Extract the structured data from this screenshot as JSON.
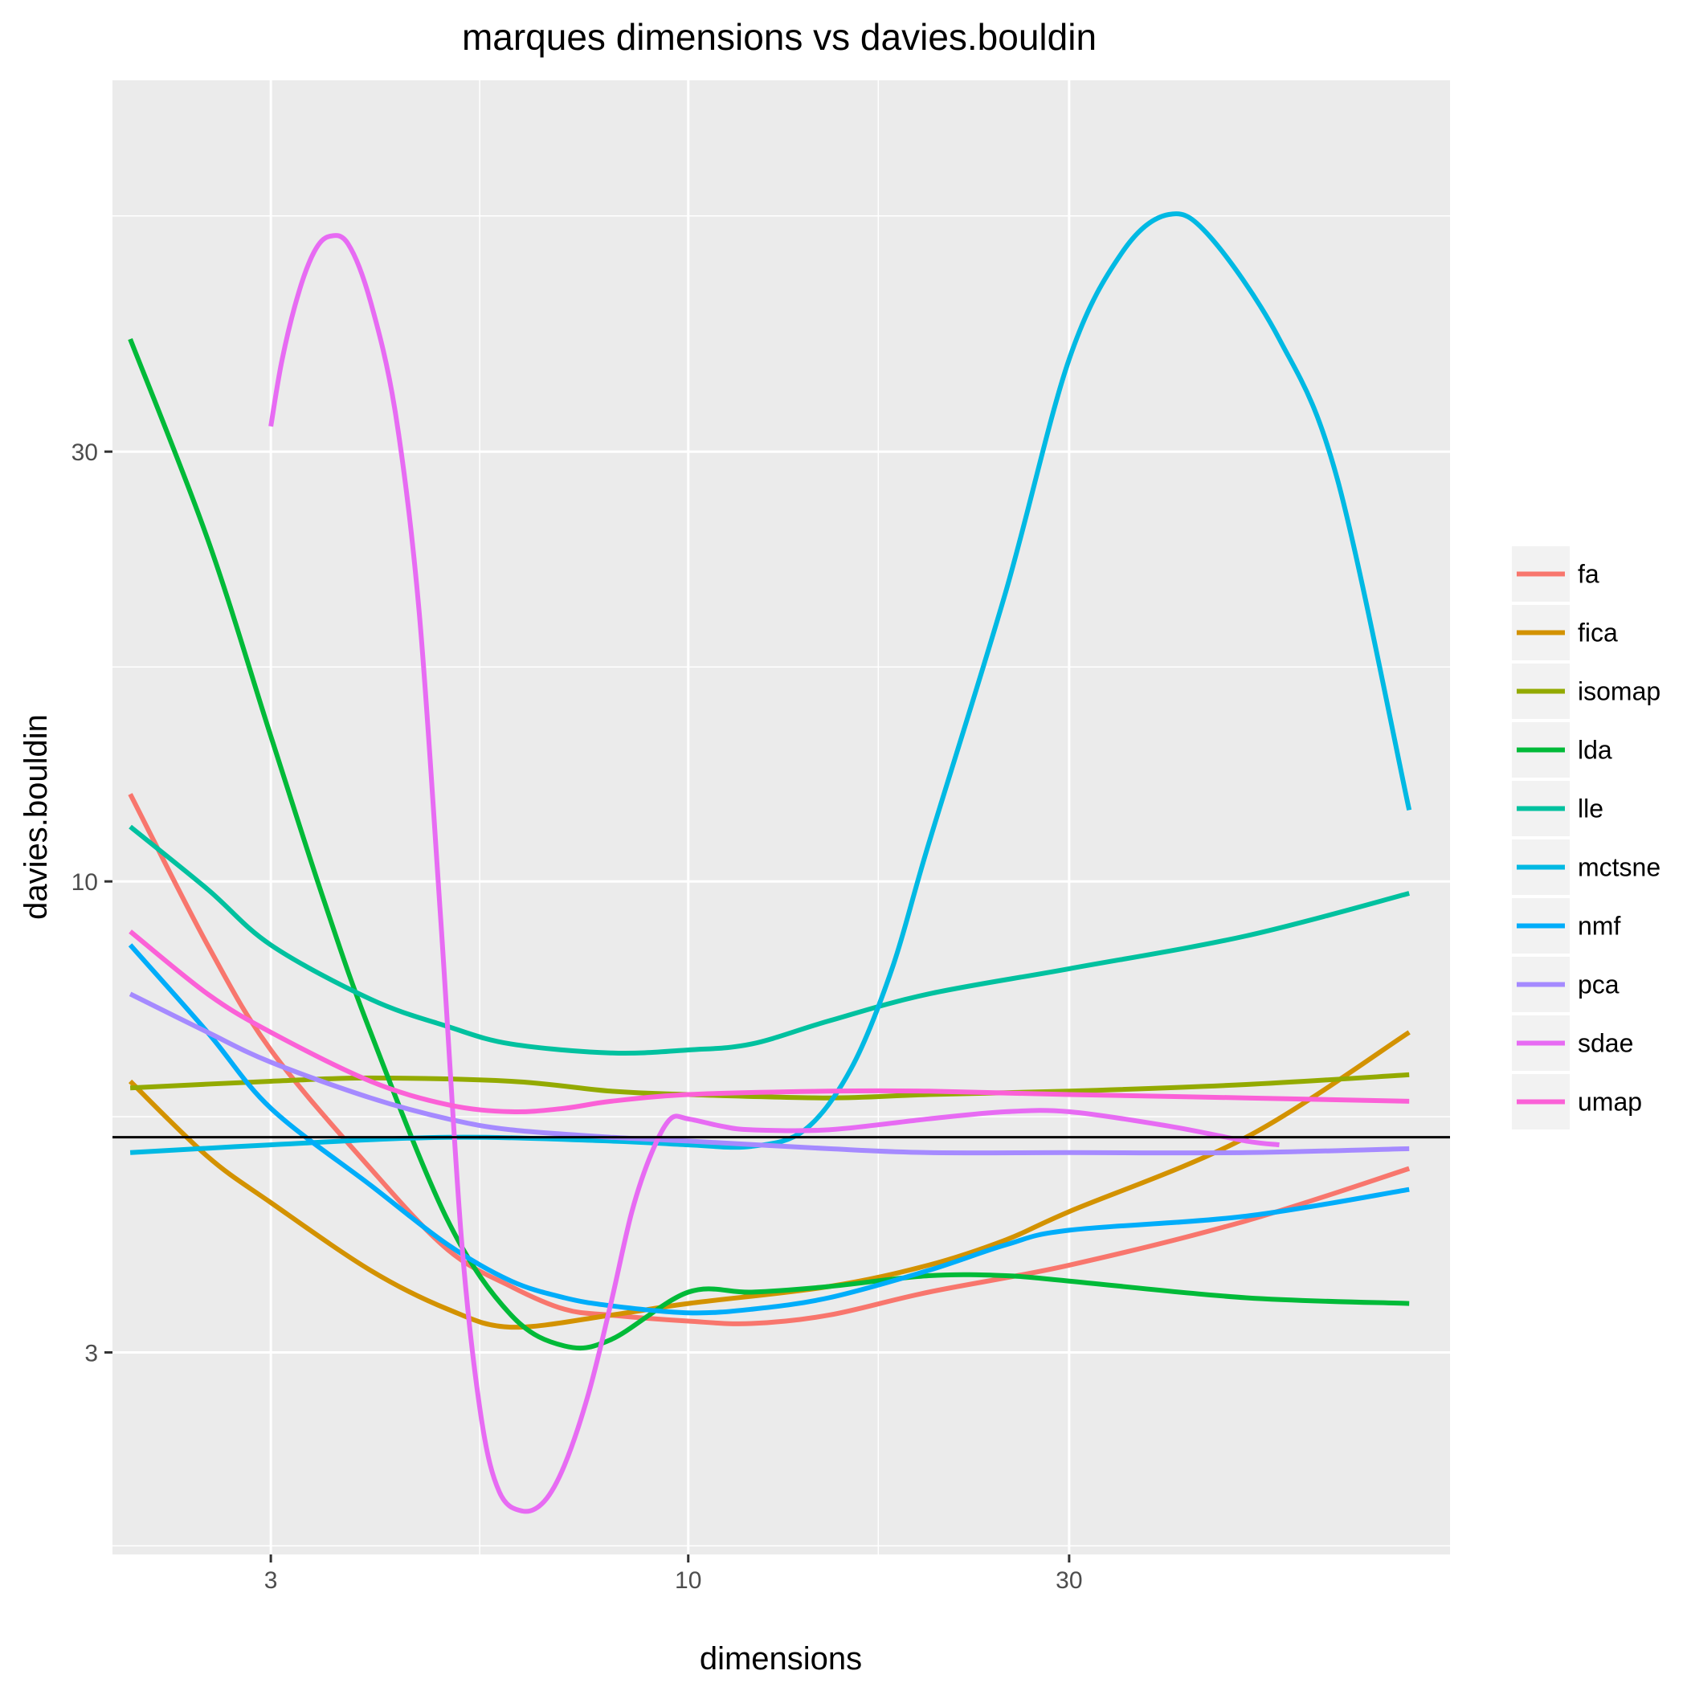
{
  "chart_data": {
    "type": "line",
    "title": "marques dimensions vs davies.bouldin",
    "xlabel": "dimensions",
    "ylabel": "davies.bouldin",
    "x_scale": "log",
    "y_scale": "log",
    "xlim": [
      1.9,
      90
    ],
    "ylim": [
      1.79,
      77.5
    ],
    "x_ticks": [
      3,
      10,
      30
    ],
    "x_tick_labels": [
      "3",
      "10",
      "30"
    ],
    "x_minor_ticks": [
      5.48,
      17.3
    ],
    "y_ticks": [
      3,
      10,
      30
    ],
    "y_tick_labels": [
      "3",
      "10",
      "30"
    ],
    "y_minor_ticks": [
      1.83,
      5.48,
      17.3,
      54.8
    ],
    "reference_line_y": 5.2,
    "grid": true,
    "legend_position": "right",
    "series": [
      {
        "name": "fa",
        "color": "#F8766D",
        "points": [
          [
            2,
            12.5
          ],
          [
            2.5,
            8.5
          ],
          [
            3,
            6.5
          ],
          [
            4,
            4.8
          ],
          [
            5,
            3.9
          ],
          [
            6,
            3.55
          ],
          [
            7,
            3.35
          ],
          [
            8,
            3.3
          ],
          [
            10,
            3.25
          ],
          [
            12,
            3.23
          ],
          [
            15,
            3.3
          ],
          [
            20,
            3.5
          ],
          [
            30,
            3.75
          ],
          [
            50,
            4.2
          ],
          [
            80,
            4.8
          ]
        ]
      },
      {
        "name": "fica",
        "color": "#D39200",
        "points": [
          [
            2,
            6.0
          ],
          [
            2.5,
            4.95
          ],
          [
            3,
            4.4
          ],
          [
            4,
            3.7
          ],
          [
            5,
            3.35
          ],
          [
            6,
            3.2
          ],
          [
            8,
            3.3
          ],
          [
            10,
            3.4
          ],
          [
            15,
            3.55
          ],
          [
            20,
            3.75
          ],
          [
            25,
            4.0
          ],
          [
            30,
            4.3
          ],
          [
            50,
            5.2
          ],
          [
            80,
            6.8
          ]
        ]
      },
      {
        "name": "isomap",
        "color": "#93AA00",
        "points": [
          [
            2,
            5.9
          ],
          [
            3,
            6.0
          ],
          [
            4,
            6.05
          ],
          [
            6,
            6.0
          ],
          [
            8,
            5.85
          ],
          [
            10,
            5.8
          ],
          [
            15,
            5.75
          ],
          [
            20,
            5.8
          ],
          [
            30,
            5.85
          ],
          [
            50,
            5.95
          ],
          [
            80,
            6.1
          ]
        ]
      },
      {
        "name": "lda",
        "color": "#00BA38",
        "points": [
          [
            2,
            40
          ],
          [
            2.5,
            24
          ],
          [
            3,
            14.5
          ],
          [
            3.5,
            9.5
          ],
          [
            4,
            6.8
          ],
          [
            5,
            4.2
          ],
          [
            6,
            3.3
          ],
          [
            7,
            3.05
          ],
          [
            8,
            3.1
          ],
          [
            10,
            3.5
          ],
          [
            12,
            3.5
          ],
          [
            15,
            3.55
          ],
          [
            20,
            3.65
          ],
          [
            25,
            3.65
          ],
          [
            30,
            3.6
          ],
          [
            50,
            3.45
          ],
          [
            80,
            3.4
          ]
        ]
      },
      {
        "name": "lle",
        "color": "#00C19F",
        "points": [
          [
            2,
            11.5
          ],
          [
            2.5,
            9.8
          ],
          [
            3,
            8.5
          ],
          [
            4,
            7.4
          ],
          [
            5,
            6.9
          ],
          [
            6,
            6.6
          ],
          [
            8,
            6.45
          ],
          [
            10,
            6.5
          ],
          [
            12,
            6.6
          ],
          [
            15,
            7.0
          ],
          [
            20,
            7.5
          ],
          [
            30,
            8.0
          ],
          [
            50,
            8.7
          ],
          [
            80,
            9.7
          ]
        ]
      },
      {
        "name": "mctsne",
        "color": "#00B9E3",
        "points": [
          [
            2,
            5.0
          ],
          [
            3,
            5.1
          ],
          [
            5,
            5.2
          ],
          [
            8,
            5.15
          ],
          [
            10,
            5.1
          ],
          [
            12,
            5.08
          ],
          [
            14,
            5.3
          ],
          [
            16,
            6.2
          ],
          [
            18,
            8.0
          ],
          [
            20,
            11.0
          ],
          [
            25,
            21.0
          ],
          [
            30,
            38.0
          ],
          [
            35,
            50.0
          ],
          [
            40,
            55.0
          ],
          [
            45,
            52.0
          ],
          [
            55,
            40.0
          ],
          [
            65,
            28.0
          ],
          [
            80,
            12.0
          ]
        ]
      },
      {
        "name": "nmf",
        "color": "#00ADFA",
        "points": [
          [
            2,
            8.5
          ],
          [
            2.5,
            6.8
          ],
          [
            3,
            5.6
          ],
          [
            4,
            4.6
          ],
          [
            5,
            3.95
          ],
          [
            6,
            3.6
          ],
          [
            7,
            3.45
          ],
          [
            8,
            3.38
          ],
          [
            10,
            3.32
          ],
          [
            12,
            3.35
          ],
          [
            15,
            3.45
          ],
          [
            20,
            3.7
          ],
          [
            25,
            3.95
          ],
          [
            30,
            4.1
          ],
          [
            50,
            4.25
          ],
          [
            80,
            4.55
          ]
        ]
      },
      {
        "name": "pca",
        "color": "#A58AFF",
        "points": [
          [
            2,
            7.5
          ],
          [
            2.5,
            6.8
          ],
          [
            3,
            6.3
          ],
          [
            4,
            5.75
          ],
          [
            5,
            5.45
          ],
          [
            6,
            5.3
          ],
          [
            8,
            5.2
          ],
          [
            10,
            5.15
          ],
          [
            15,
            5.05
          ],
          [
            20,
            5.0
          ],
          [
            30,
            5.0
          ],
          [
            50,
            5.0
          ],
          [
            80,
            5.05
          ]
        ]
      },
      {
        "name": "sdae",
        "color": "#E76BF3",
        "points": [
          [
            3,
            32
          ],
          [
            3.1,
            38
          ],
          [
            3.25,
            45
          ],
          [
            3.4,
            50
          ],
          [
            3.55,
            52
          ],
          [
            3.75,
            51
          ],
          [
            4,
            44
          ],
          [
            4.3,
            33
          ],
          [
            4.6,
            20
          ],
          [
            4.9,
            9.0
          ],
          [
            5.2,
            4.0
          ],
          [
            5.5,
            2.55
          ],
          [
            5.8,
            2.1
          ],
          [
            6.2,
            2.0
          ],
          [
            6.6,
            2.05
          ],
          [
            7,
            2.25
          ],
          [
            7.5,
            2.7
          ],
          [
            8,
            3.4
          ],
          [
            8.5,
            4.3
          ],
          [
            9,
            5.0
          ],
          [
            9.5,
            5.45
          ],
          [
            10,
            5.45
          ],
          [
            11,
            5.35
          ],
          [
            12,
            5.3
          ],
          [
            15,
            5.3
          ],
          [
            20,
            5.45
          ],
          [
            25,
            5.55
          ],
          [
            30,
            5.55
          ],
          [
            40,
            5.35
          ],
          [
            50,
            5.15
          ],
          [
            55,
            5.1
          ]
        ]
      },
      {
        "name": "umap",
        "color": "#FB61D7",
        "points": [
          [
            2,
            8.8
          ],
          [
            2.5,
            7.5
          ],
          [
            3,
            6.8
          ],
          [
            4,
            6.0
          ],
          [
            5,
            5.65
          ],
          [
            6,
            5.55
          ],
          [
            7,
            5.6
          ],
          [
            8,
            5.7
          ],
          [
            10,
            5.8
          ],
          [
            15,
            5.85
          ],
          [
            20,
            5.85
          ],
          [
            30,
            5.8
          ],
          [
            50,
            5.75
          ],
          [
            80,
            5.7
          ]
        ]
      }
    ]
  }
}
